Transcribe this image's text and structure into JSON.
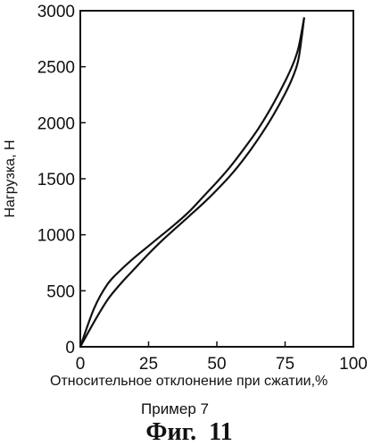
{
  "chart_data": {
    "type": "line",
    "xlabel": "Относительное отклонение при сжатии,%",
    "ylabel": "Нагрузка, Н",
    "xlim": [
      0,
      100
    ],
    "ylim": [
      0,
      3000
    ],
    "x_ticks": [
      0,
      25,
      50,
      75,
      100
    ],
    "x_tick_labels": [
      "0",
      "25",
      "50",
      "75",
      "100"
    ],
    "y_ticks": [
      0,
      500,
      1000,
      1500,
      2000,
      2500,
      3000
    ],
    "y_tick_labels": [
      "0",
      "500",
      "1000",
      "1500",
      "2000",
      "2500",
      "3000"
    ],
    "grid": false,
    "legend": "none",
    "series": [
      {
        "x": [
          0,
          5,
          10,
          15,
          20,
          25,
          30,
          35,
          40,
          45,
          50,
          55,
          60,
          65,
          70,
          75,
          78,
          80,
          82
        ],
        "y": [
          0,
          340,
          560,
          690,
          800,
          900,
          1000,
          1100,
          1210,
          1340,
          1470,
          1610,
          1770,
          1940,
          2140,
          2370,
          2530,
          2680,
          2940
        ]
      },
      {
        "x": [
          0,
          5,
          10,
          15,
          20,
          25,
          30,
          35,
          40,
          45,
          50,
          55,
          60,
          65,
          70,
          75,
          78,
          80,
          82
        ],
        "y": [
          0,
          220,
          420,
          570,
          700,
          830,
          950,
          1060,
          1170,
          1280,
          1400,
          1530,
          1680,
          1850,
          2040,
          2260,
          2420,
          2580,
          2940
        ]
      }
    ]
  },
  "caption": {
    "example": "Пример 7",
    "figure": "Фиг.  11"
  }
}
